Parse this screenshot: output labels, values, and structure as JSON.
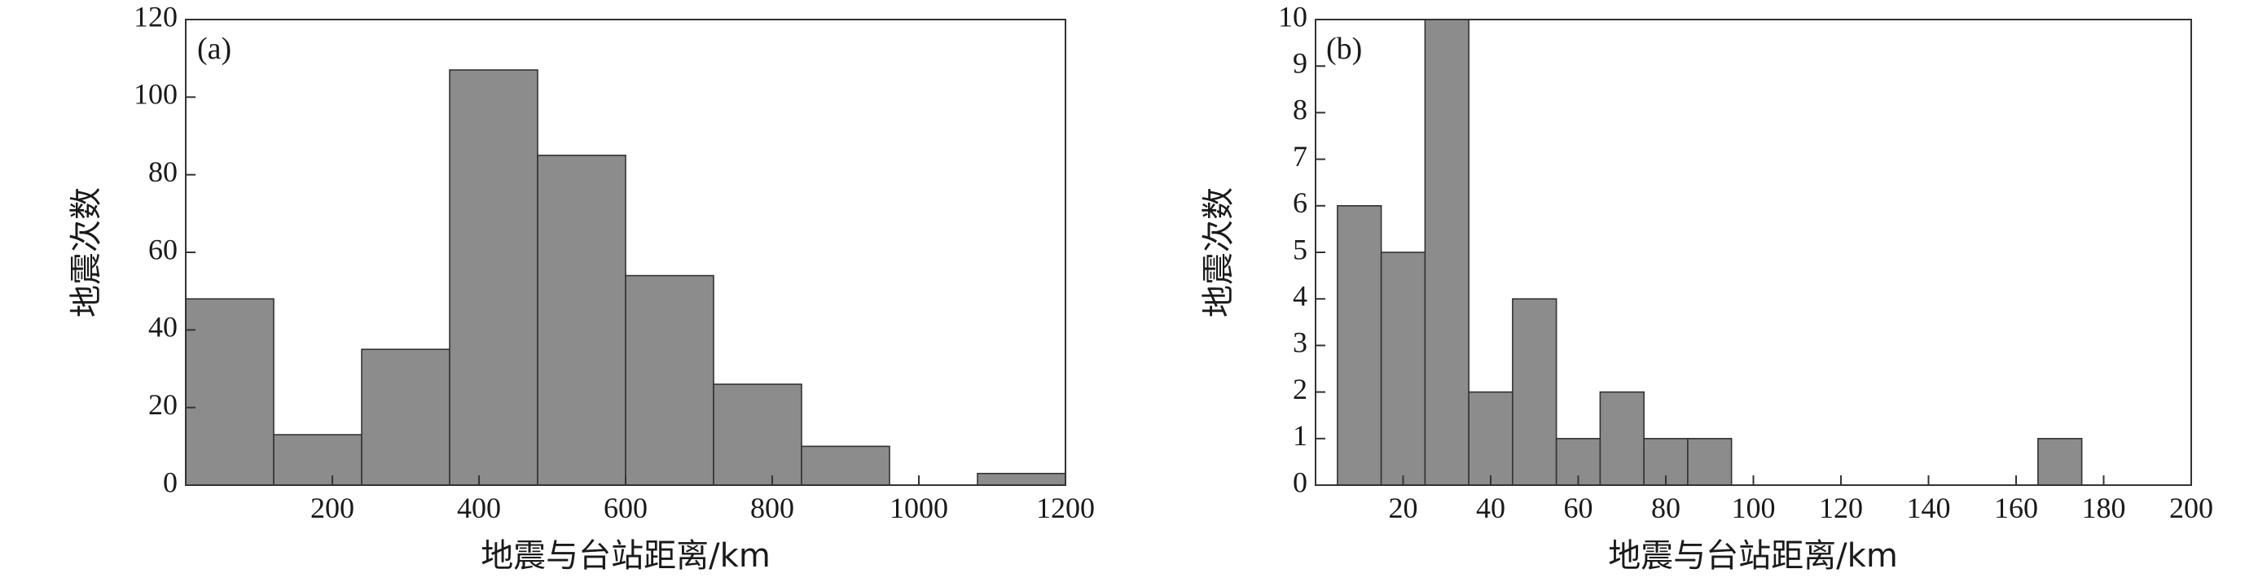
{
  "chart_data": [
    {
      "type": "bar",
      "panel_label": "(a)",
      "xlabel": "地震与台站距离/km",
      "ylabel": "地震次数",
      "xlim": [
        0,
        1200
      ],
      "ylim": [
        0,
        120
      ],
      "x_ticks": [
        200,
        400,
        600,
        800,
        1000,
        1200
      ],
      "y_ticks": [
        0,
        20,
        40,
        60,
        80,
        100,
        120
      ],
      "bins": [
        {
          "x0": 0,
          "x1": 120,
          "value": 48
        },
        {
          "x0": 120,
          "x1": 240,
          "value": 13
        },
        {
          "x0": 240,
          "x1": 360,
          "value": 35
        },
        {
          "x0": 360,
          "x1": 480,
          "value": 107
        },
        {
          "x0": 480,
          "x1": 600,
          "value": 85
        },
        {
          "x0": 600,
          "x1": 720,
          "value": 54
        },
        {
          "x0": 720,
          "x1": 840,
          "value": 26
        },
        {
          "x0": 840,
          "x1": 960,
          "value": 10
        },
        {
          "x0": 960,
          "x1": 1080,
          "value": 0
        },
        {
          "x0": 1080,
          "x1": 1200,
          "value": 3
        }
      ],
      "bar_color": "#8c8c8c",
      "grid": false
    },
    {
      "type": "bar",
      "panel_label": "(b)",
      "xlabel": "地震与台站距离/km",
      "ylabel": "地震次数",
      "xlim": [
        0,
        200
      ],
      "ylim": [
        0,
        10
      ],
      "x_ticks": [
        20,
        40,
        60,
        80,
        100,
        120,
        140,
        160,
        180,
        200
      ],
      "y_ticks": [
        0,
        1,
        2,
        3,
        4,
        5,
        6,
        7,
        8,
        9,
        10
      ],
      "bins": [
        {
          "x0": 5,
          "x1": 15,
          "value": 6
        },
        {
          "x0": 15,
          "x1": 25,
          "value": 5
        },
        {
          "x0": 25,
          "x1": 35,
          "value": 10
        },
        {
          "x0": 35,
          "x1": 45,
          "value": 2
        },
        {
          "x0": 45,
          "x1": 55,
          "value": 4
        },
        {
          "x0": 55,
          "x1": 65,
          "value": 1
        },
        {
          "x0": 65,
          "x1": 75,
          "value": 2
        },
        {
          "x0": 75,
          "x1": 85,
          "value": 1
        },
        {
          "x0": 85,
          "x1": 95,
          "value": 1
        },
        {
          "x0": 165,
          "x1": 175,
          "value": 1
        }
      ],
      "bar_color": "#8c8c8c",
      "grid": false
    }
  ]
}
